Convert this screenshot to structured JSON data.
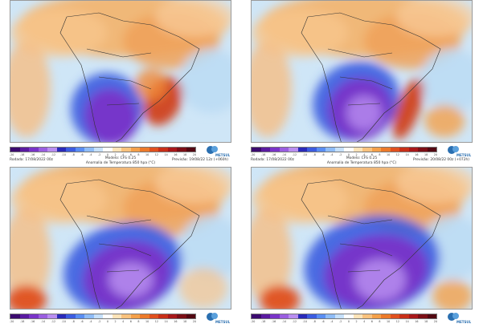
{
  "panels": [
    {
      "name": "top-left",
      "run": "Rodada: 17/08/2022 00z",
      "model": "Modelo: CFS 0.25",
      "var": "Anomalia de Temperatura 850 hpa (°C)",
      "forecast": "Previsão: 19/08/22 12z (+060h)",
      "pattern": "a"
    },
    {
      "name": "top-right",
      "run": "Rodada: 17/08/2022 00z",
      "model": "Modelo: CFS 0.25",
      "var": "Anomalia de Temperatura 850 hpa (°C)",
      "forecast": "Previsão: 20/08/22 00z (+072h)",
      "pattern": "b"
    },
    {
      "name": "bottom-left",
      "run": "",
      "model": "",
      "var": "",
      "forecast": "",
      "pattern": "c"
    },
    {
      "name": "bottom-right",
      "run": "",
      "model": "",
      "var": "",
      "forecast": "",
      "pattern": "d"
    }
  ],
  "colorbar": {
    "ticks": [
      "-20",
      "-18",
      "-16",
      "-14",
      "-12",
      "-10",
      "-8",
      "-6",
      "-4",
      "-2",
      "0",
      "2",
      "4",
      "6",
      "8",
      "10",
      "12",
      "14",
      "16",
      "18",
      "20"
    ],
    "colors": [
      "#3b0a6e",
      "#5a1aa0",
      "#7a34c8",
      "#9a5ee0",
      "#b98ef0",
      "#2a2ab8",
      "#3c5ce0",
      "#5a8ef2",
      "#8fbcf6",
      "#c6e0fb",
      "#ffffff",
      "#fde3b8",
      "#f9c27e",
      "#f4a04a",
      "#ec7a2a",
      "#e0501e",
      "#c82f18",
      "#a8181a",
      "#7c0f16",
      "#520812"
    ]
  },
  "logo_text": "METSUL"
}
